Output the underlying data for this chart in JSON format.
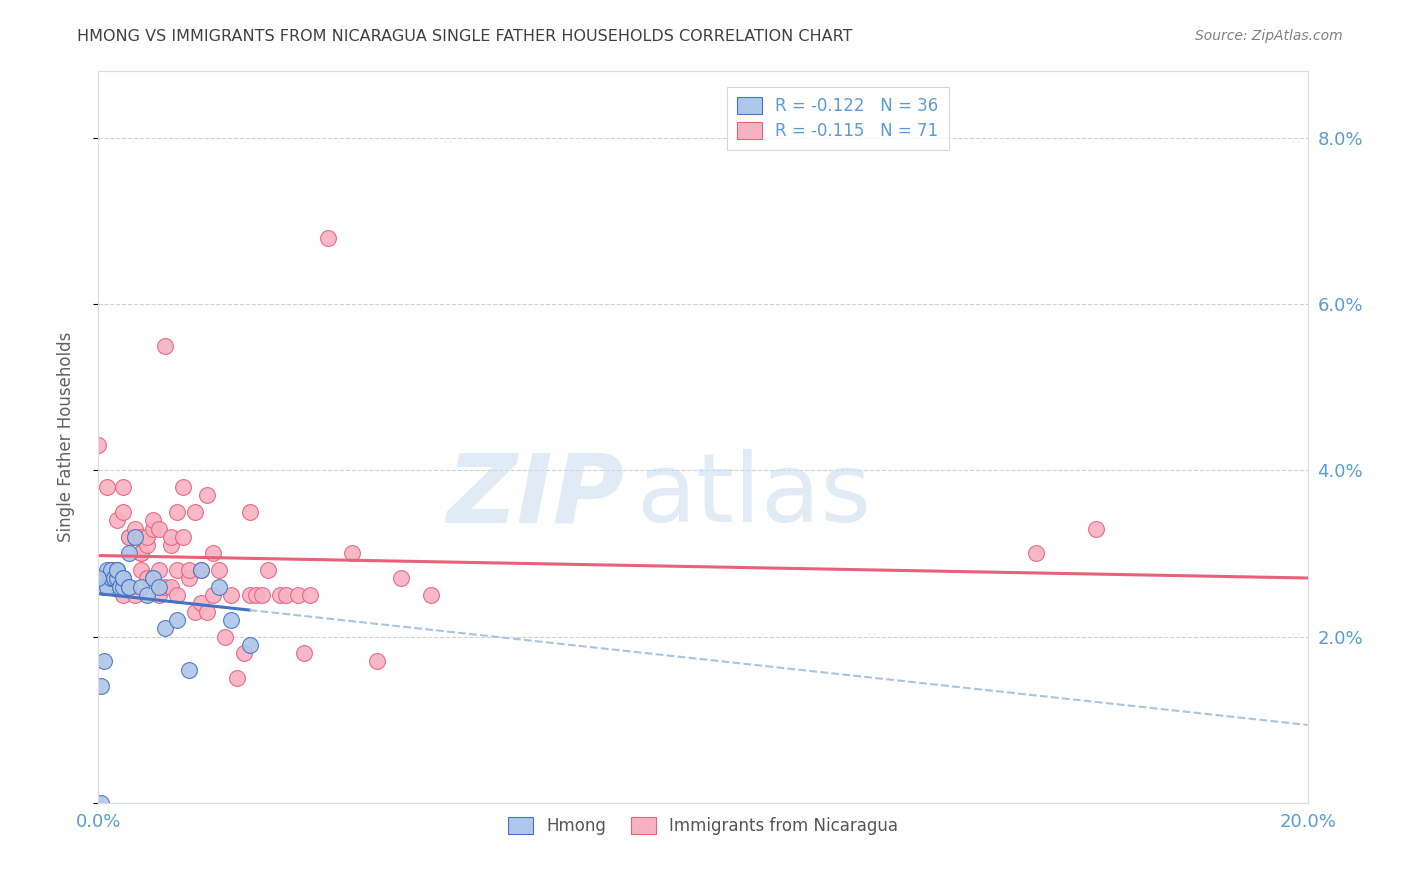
{
  "title": "HMONG VS IMMIGRANTS FROM NICARAGUA SINGLE FATHER HOUSEHOLDS CORRELATION CHART",
  "source": "Source: ZipAtlas.com",
  "ylabel": "Single Father Households",
  "xlim": [
    0.0,
    0.2
  ],
  "ylim": [
    0.0,
    0.088
  ],
  "yticks": [
    0.0,
    0.02,
    0.04,
    0.06,
    0.08
  ],
  "ytick_labels": [
    "",
    "2.0%",
    "4.0%",
    "6.0%",
    "8.0%"
  ],
  "xticks": [
    0.0,
    0.05,
    0.1,
    0.15,
    0.2
  ],
  "xtick_labels": [
    "0.0%",
    "",
    "",
    "",
    "20.0%"
  ],
  "legend_label1": "R = -0.122   N = 36",
  "legend_label2": "R = -0.115   N = 71",
  "hmong_color": "#aec6e8",
  "nicaragua_color": "#f7b2c1",
  "hmong_edge_color": "#4472c4",
  "nicaragua_edge_color": "#e8607a",
  "hmong_line_color": "#4472c4",
  "nicaragua_line_color": "#e8607a",
  "hmong_dash_color": "#a8c4e0",
  "axis_color": "#5b9bd5",
  "grid_color": "#d0d0d0",
  "title_color": "#404040",
  "source_color": "#808080",
  "ylabel_color": "#606060",
  "hmong_data_x": [
    0.0005,
    0.0005,
    0.001,
    0.001,
    0.0015,
    0.0015,
    0.002,
    0.002,
    0.002,
    0.0025,
    0.0025,
    0.003,
    0.003,
    0.003,
    0.003,
    0.0035,
    0.0035,
    0.004,
    0.004,
    0.004,
    0.005,
    0.005,
    0.005,
    0.006,
    0.007,
    0.008,
    0.009,
    0.01,
    0.011,
    0.013,
    0.015,
    0.017,
    0.02,
    0.022,
    0.025,
    0.0
  ],
  "hmong_data_y": [
    0.0,
    0.014,
    0.017,
    0.026,
    0.026,
    0.028,
    0.027,
    0.027,
    0.028,
    0.027,
    0.027,
    0.027,
    0.027,
    0.028,
    0.028,
    0.026,
    0.026,
    0.026,
    0.027,
    0.027,
    0.026,
    0.026,
    0.03,
    0.032,
    0.026,
    0.025,
    0.027,
    0.026,
    0.021,
    0.022,
    0.016,
    0.028,
    0.026,
    0.022,
    0.019,
    0.027
  ],
  "nicaragua_data_x": [
    0.0,
    0.001,
    0.0015,
    0.002,
    0.002,
    0.003,
    0.003,
    0.004,
    0.004,
    0.004,
    0.005,
    0.005,
    0.005,
    0.006,
    0.006,
    0.006,
    0.007,
    0.007,
    0.007,
    0.007,
    0.008,
    0.008,
    0.008,
    0.009,
    0.009,
    0.009,
    0.01,
    0.01,
    0.01,
    0.011,
    0.011,
    0.012,
    0.012,
    0.012,
    0.013,
    0.013,
    0.013,
    0.014,
    0.014,
    0.015,
    0.015,
    0.016,
    0.016,
    0.017,
    0.017,
    0.018,
    0.018,
    0.019,
    0.019,
    0.02,
    0.021,
    0.022,
    0.023,
    0.024,
    0.025,
    0.025,
    0.026,
    0.027,
    0.028,
    0.03,
    0.031,
    0.033,
    0.034,
    0.035,
    0.038,
    0.042,
    0.046,
    0.05,
    0.055,
    0.155,
    0.165
  ],
  "nicaragua_data_y": [
    0.043,
    0.027,
    0.038,
    0.028,
    0.028,
    0.027,
    0.034,
    0.025,
    0.035,
    0.038,
    0.026,
    0.032,
    0.032,
    0.025,
    0.032,
    0.033,
    0.028,
    0.03,
    0.03,
    0.032,
    0.027,
    0.031,
    0.032,
    0.027,
    0.033,
    0.034,
    0.025,
    0.028,
    0.033,
    0.026,
    0.055,
    0.026,
    0.031,
    0.032,
    0.025,
    0.028,
    0.035,
    0.032,
    0.038,
    0.027,
    0.028,
    0.023,
    0.035,
    0.024,
    0.028,
    0.023,
    0.037,
    0.025,
    0.03,
    0.028,
    0.02,
    0.025,
    0.015,
    0.018,
    0.025,
    0.035,
    0.025,
    0.025,
    0.028,
    0.025,
    0.025,
    0.025,
    0.018,
    0.025,
    0.068,
    0.03,
    0.017,
    0.027,
    0.025,
    0.03,
    0.033
  ]
}
